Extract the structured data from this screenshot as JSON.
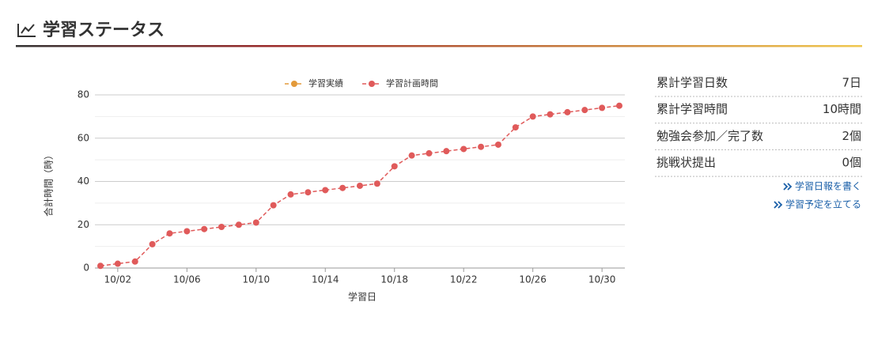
{
  "header": {
    "title": "学習ステータス"
  },
  "chart_data": {
    "type": "line",
    "x_label": "学習日",
    "y_label": "合計時間（時）",
    "categories": [
      null,
      "10/02",
      null,
      null,
      null,
      "10/06",
      null,
      null,
      null,
      "10/10",
      null,
      null,
      null,
      "10/14",
      null,
      null,
      null,
      "10/18",
      null,
      null,
      null,
      "10/22",
      null,
      null,
      null,
      "10/26",
      null,
      null,
      null,
      "10/30",
      null
    ],
    "series": [
      {
        "name": "学習実績",
        "color": "#e39a3b",
        "values": [
          null,
          null,
          null,
          null,
          null,
          null,
          null,
          null,
          null,
          null,
          null,
          null,
          null,
          null,
          null,
          null,
          null,
          null,
          null,
          null,
          null,
          null,
          null,
          null,
          null,
          null,
          null,
          null,
          null,
          null,
          null
        ]
      },
      {
        "name": "学習計画時間",
        "color": "#e05a5a",
        "values": [
          1,
          2,
          3,
          11,
          16,
          17,
          18,
          19,
          20,
          21,
          29,
          34,
          35,
          36,
          37,
          38,
          39,
          47,
          52,
          53,
          54,
          55,
          56,
          57,
          65,
          70,
          71,
          72,
          73,
          74,
          75
        ]
      }
    ],
    "ylim": [
      0,
      80
    ],
    "yticks": [
      0,
      20,
      40,
      60,
      80
    ],
    "minor_grid": [
      10,
      30,
      50,
      70
    ],
    "grid": true,
    "legend": "top"
  },
  "stats": [
    {
      "label": "累計学習日数",
      "value": "7日"
    },
    {
      "label": "累計学習時間",
      "value": "10時間"
    },
    {
      "label": "勉強会参加／完了数",
      "value": "2個"
    },
    {
      "label": "挑戦状提出",
      "value": "0個"
    }
  ],
  "links": [
    "学習日報を書く",
    "学習予定を立てる"
  ]
}
